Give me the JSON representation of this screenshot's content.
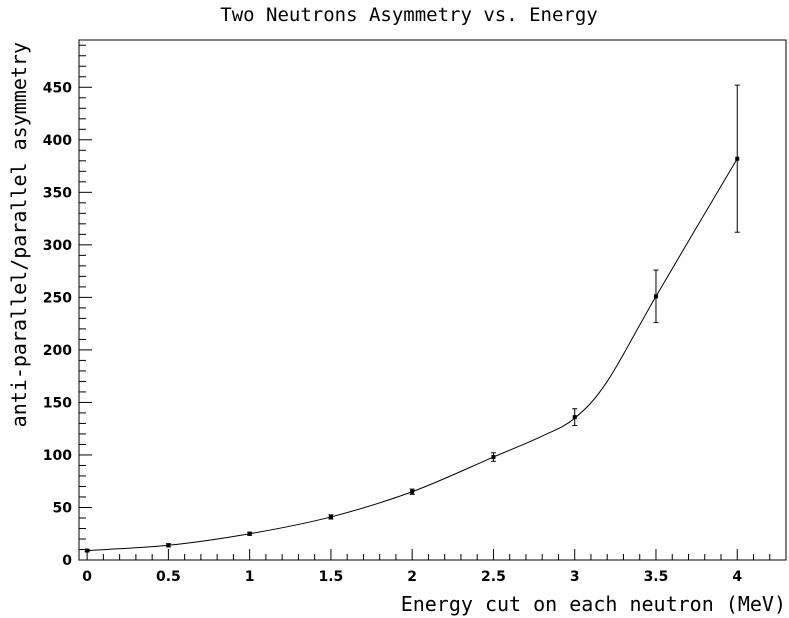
{
  "chart_data": {
    "type": "scatter",
    "title": "Two Neutrons Asymmetry vs. Energy",
    "xlabel": "Energy cut on each neutron (MeV)",
    "ylabel": "anti-parallel/parallel asymmetry",
    "xlim": [
      -0.05,
      4.3
    ],
    "ylim": [
      0,
      495
    ],
    "grid": false,
    "x_ticks": [
      0,
      0.5,
      1,
      1.5,
      2,
      2.5,
      3,
      3.5,
      4
    ],
    "x_tick_labels": [
      "0",
      "0.5",
      "1",
      "1.5",
      "2",
      "2.5",
      "3",
      "3.5",
      "4"
    ],
    "y_ticks": [
      0,
      50,
      100,
      150,
      200,
      250,
      300,
      350,
      400,
      450
    ],
    "y_tick_labels": [
      "0",
      "50",
      "100",
      "150",
      "200",
      "250",
      "300",
      "350",
      "400",
      "450"
    ],
    "series": [
      {
        "x": [
          0,
          0.5,
          1,
          1.5,
          2,
          2.5,
          3,
          3.5,
          4
        ],
        "y": [
          9,
          14,
          25,
          41,
          65,
          98,
          136,
          251,
          382
        ],
        "yerr": [
          1,
          1.5,
          1.5,
          2,
          2.5,
          4,
          8,
          25,
          70
        ]
      }
    ],
    "fit_curve": {
      "x": [
        0,
        0.5,
        1,
        1.5,
        2,
        2.5,
        2.8,
        3,
        3.2,
        3.5,
        4
      ],
      "y": [
        9,
        14,
        25,
        41,
        65,
        98,
        118,
        135,
        170,
        251,
        382
      ]
    }
  }
}
